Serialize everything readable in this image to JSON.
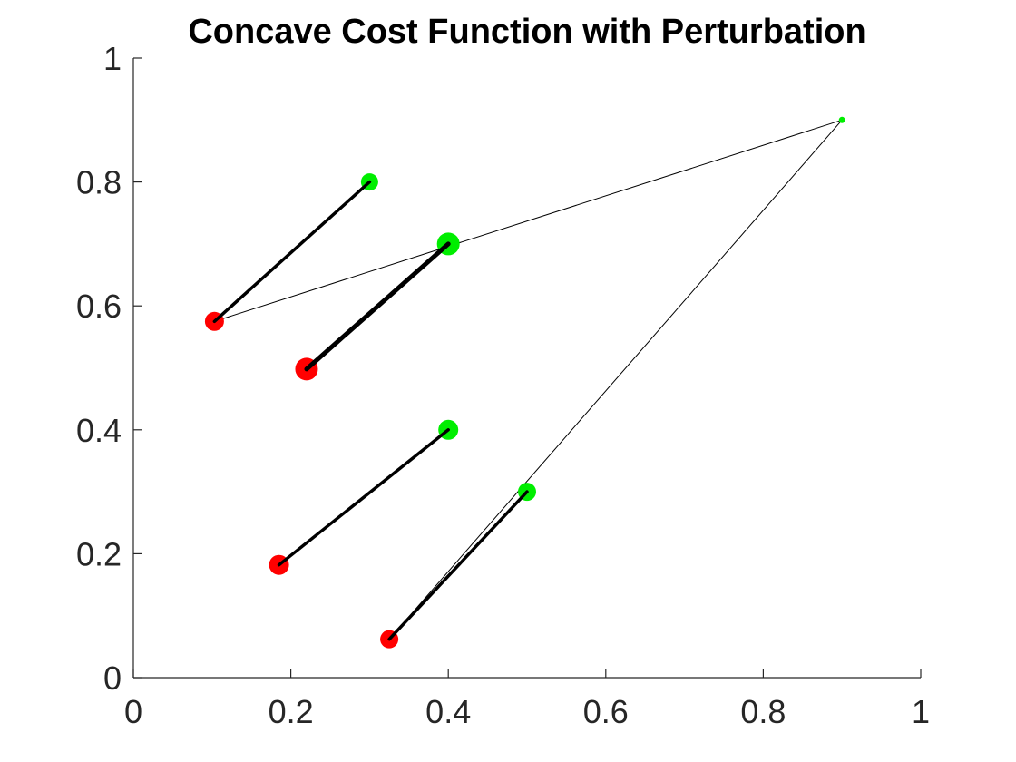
{
  "chart_data": {
    "type": "scatter",
    "title": "Concave Cost Function with Perturbation",
    "xlabel": "",
    "ylabel": "",
    "xlim": [
      0,
      1
    ],
    "ylim": [
      0,
      1
    ],
    "xticks": [
      0,
      0.2,
      0.4,
      0.6,
      0.8,
      1
    ],
    "yticks": [
      0,
      0.2,
      0.4,
      0.6,
      0.8,
      1
    ],
    "xtick_labels": [
      "0",
      "0.2",
      "0.4",
      "0.6",
      "0.8",
      "1"
    ],
    "ytick_labels": [
      "0",
      "0.2",
      "0.4",
      "0.6",
      "0.8",
      "1"
    ],
    "grid": false,
    "series": [
      {
        "color": "#ff0000",
        "points": [
          {
            "x": 0.103,
            "y": 0.575
          },
          {
            "x": 0.22,
            "y": 0.498
          },
          {
            "x": 0.185,
            "y": 0.182
          },
          {
            "x": 0.325,
            "y": 0.062
          }
        ]
      },
      {
        "color": "#00ee00",
        "points": [
          {
            "x": 0.3,
            "y": 0.8
          },
          {
            "x": 0.4,
            "y": 0.7
          },
          {
            "x": 0.4,
            "y": 0.4
          },
          {
            "x": 0.5,
            "y": 0.3
          },
          {
            "x": 0.9,
            "y": 0.9
          }
        ]
      }
    ],
    "thick_segments": [
      {
        "from": [
          0.103,
          0.575
        ],
        "to": [
          0.3,
          0.8
        ]
      },
      {
        "from": [
          0.22,
          0.498
        ],
        "to": [
          0.4,
          0.7
        ]
      },
      {
        "from": [
          0.185,
          0.182
        ],
        "to": [
          0.4,
          0.4
        ]
      },
      {
        "from": [
          0.325,
          0.062
        ],
        "to": [
          0.5,
          0.3
        ]
      }
    ],
    "thin_segments": [
      {
        "from": [
          0.103,
          0.575
        ],
        "to": [
          0.9,
          0.9
        ]
      },
      {
        "from": [
          0.325,
          0.062
        ],
        "to": [
          0.9,
          0.9
        ]
      }
    ],
    "line_color": "#000000"
  }
}
